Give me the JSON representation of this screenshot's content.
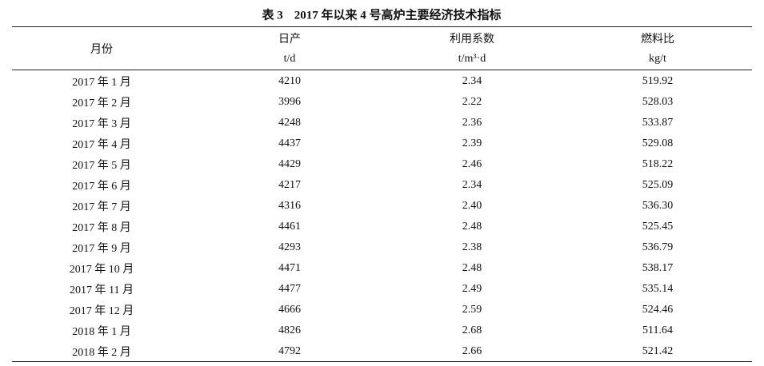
{
  "table_number": "表 3",
  "title": "2017 年以来 4 号高炉主要经济技术指标",
  "table": {
    "header": [
      {
        "name": "月份"
      },
      {
        "name": "日产",
        "unit": "t/d"
      },
      {
        "name": "利用系数",
        "unit": "t/m³·d"
      },
      {
        "name": "燃料比",
        "unit": "kg/t"
      }
    ],
    "rows": [
      [
        "2017 年 1 月",
        "4210",
        "2.34",
        "519.92"
      ],
      [
        "2017 年 2 月",
        "3996",
        "2.22",
        "528.03"
      ],
      [
        "2017 年 3 月",
        "4248",
        "2.36",
        "533.87"
      ],
      [
        "2017 年 4 月",
        "4437",
        "2.39",
        "529.08"
      ],
      [
        "2017 年 5 月",
        "4429",
        "2.46",
        "518.22"
      ],
      [
        "2017 年 6 月",
        "4217",
        "2.34",
        "525.09"
      ],
      [
        "2017 年 7 月",
        "4316",
        "2.40",
        "536.30"
      ],
      [
        "2017 年 8 月",
        "4461",
        "2.48",
        "525.45"
      ],
      [
        "2017 年 9 月",
        "4293",
        "2.38",
        "536.79"
      ],
      [
        "2017 年 10 月",
        "4471",
        "2.48",
        "538.17"
      ],
      [
        "2017 年 11 月",
        "4477",
        "2.49",
        "535.14"
      ],
      [
        "2017 年 12 月",
        "4666",
        "2.59",
        "524.46"
      ],
      [
        "2018 年 1 月",
        "4826",
        "2.68",
        "511.64"
      ],
      [
        "2018 年 2 月",
        "4792",
        "2.66",
        "521.42"
      ]
    ]
  }
}
